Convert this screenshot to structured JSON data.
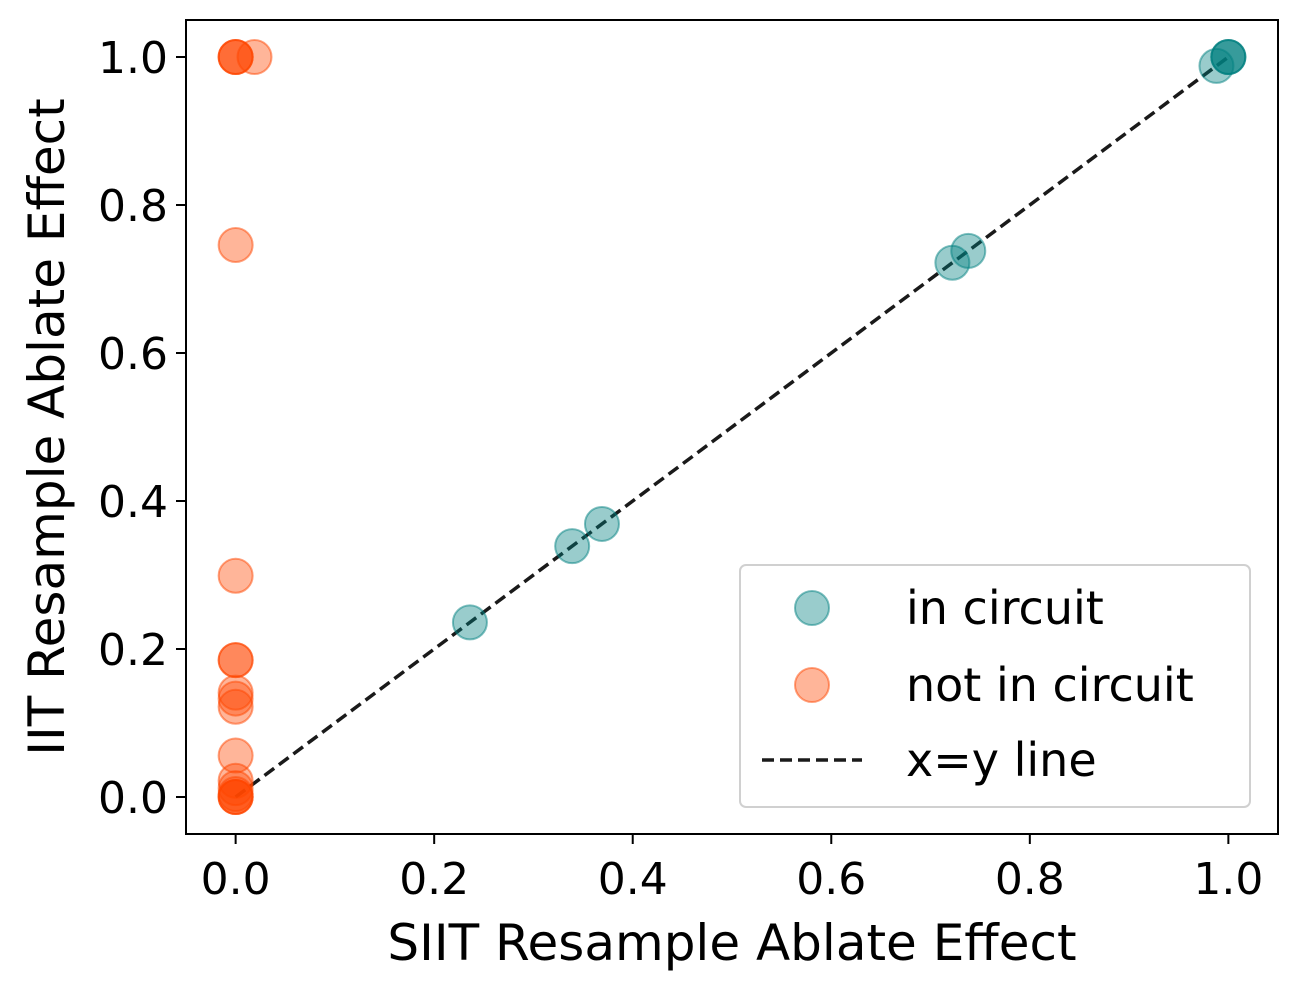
{
  "chart_data": {
    "type": "scatter",
    "title": "",
    "xlabel": "SIIT Resample Ablate Effect",
    "ylabel": "IIT Resample Ablate Effect",
    "xlim": [
      -0.05,
      1.05
    ],
    "ylim": [
      -0.05,
      1.05
    ],
    "xticks": [
      "0.0",
      "0.2",
      "0.4",
      "0.6",
      "0.8",
      "1.0"
    ],
    "yticks": [
      "0.0",
      "0.2",
      "0.4",
      "0.6",
      "0.8",
      "1.0"
    ],
    "grid": false,
    "legend": {
      "position": "lower-right"
    },
    "series": [
      {
        "name": "in circuit",
        "color": "#008080",
        "opacity": 0.4,
        "points": [
          {
            "x": 0.236,
            "y": 0.236
          },
          {
            "x": 0.339,
            "y": 0.339
          },
          {
            "x": 0.369,
            "y": 0.369
          },
          {
            "x": 0.722,
            "y": 0.722
          },
          {
            "x": 0.738,
            "y": 0.738
          },
          {
            "x": 0.988,
            "y": 0.988
          },
          {
            "x": 1.0,
            "y": 1.0
          },
          {
            "x": 1.0,
            "y": 1.0
          },
          {
            "x": 1.0,
            "y": 1.0
          }
        ]
      },
      {
        "name": "not in circuit",
        "color": "#FF4500",
        "opacity": 0.4,
        "points": [
          {
            "x": 0.0,
            "y": 1.0
          },
          {
            "x": 0.0,
            "y": 1.0
          },
          {
            "x": 0.0,
            "y": 1.0
          },
          {
            "x": 0.019,
            "y": 1.0
          },
          {
            "x": 0.0,
            "y": 0.746
          },
          {
            "x": 0.0,
            "y": 0.299
          },
          {
            "x": 0.0,
            "y": 0.185
          },
          {
            "x": 0.0,
            "y": 0.185
          },
          {
            "x": 0.0,
            "y": 0.141
          },
          {
            "x": 0.0,
            "y": 0.133
          },
          {
            "x": 0.0,
            "y": 0.122
          },
          {
            "x": 0.0,
            "y": 0.056
          },
          {
            "x": 0.0,
            "y": 0.022
          },
          {
            "x": 0.0,
            "y": 0.012
          },
          {
            "x": 0.0,
            "y": 0.004
          },
          {
            "x": 0.0,
            "y": 0.0
          },
          {
            "x": 0.0,
            "y": 0.0
          },
          {
            "x": 0.0,
            "y": 0.0
          }
        ]
      }
    ],
    "reference_line": {
      "name": "x=y line",
      "color": "#1a1a1a",
      "style": "dashed",
      "from": [
        0,
        0
      ],
      "to": [
        1,
        1
      ]
    }
  }
}
